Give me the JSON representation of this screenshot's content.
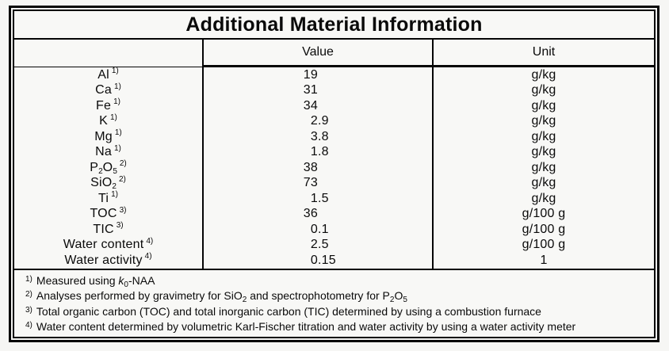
{
  "colors": {
    "background": "#f6f6f4",
    "paper": "#f8f8f6",
    "border": "#050505",
    "text": "#0a0a0a"
  },
  "table": {
    "title": "Additional Material Information",
    "columns": [
      "Value",
      "Unit"
    ],
    "rows": [
      {
        "param": [
          {
            "t": "Al"
          }
        ],
        "note": "1)",
        "value": "19",
        "unit": "g/kg"
      },
      {
        "param": [
          {
            "t": "Ca"
          }
        ],
        "note": "1)",
        "value": "31",
        "unit": "g/kg"
      },
      {
        "param": [
          {
            "t": "Fe"
          }
        ],
        "note": "1)",
        "value": "34",
        "unit": "g/kg"
      },
      {
        "param": [
          {
            "t": "K"
          }
        ],
        "note": "1)",
        "value": "2.9",
        "unit": "g/kg"
      },
      {
        "param": [
          {
            "t": "Mg"
          }
        ],
        "note": "1)",
        "value": "3.8",
        "unit": "g/kg"
      },
      {
        "param": [
          {
            "t": "Na"
          }
        ],
        "note": "1)",
        "value": "1.8",
        "unit": "g/kg"
      },
      {
        "param": [
          {
            "t": "P"
          },
          {
            "t": "2",
            "s": "sub"
          },
          {
            "t": "O"
          },
          {
            "t": "5",
            "s": "sub"
          }
        ],
        "note": "2)",
        "value": "38",
        "unit": "g/kg"
      },
      {
        "param": [
          {
            "t": "SiO"
          },
          {
            "t": "2",
            "s": "sub"
          }
        ],
        "note": "2)",
        "value": "73",
        "unit": "g/kg"
      },
      {
        "param": [
          {
            "t": "Ti"
          }
        ],
        "note": "1)",
        "value": "1.5",
        "unit": "g/kg"
      },
      {
        "param": [
          {
            "t": "TOC"
          }
        ],
        "note": "3)",
        "value": "36",
        "unit": "g/100 g"
      },
      {
        "param": [
          {
            "t": "TIC"
          }
        ],
        "note": "3)",
        "value": "0.1",
        "unit": "g/100 g"
      },
      {
        "param": [
          {
            "t": "Water content"
          }
        ],
        "note": "4)",
        "value": "2.5",
        "unit": "g/100 g"
      },
      {
        "param": [
          {
            "t": "Water activity"
          }
        ],
        "note": "4)",
        "value": "0.15",
        "unit": "1"
      }
    ],
    "footnotes": [
      {
        "marker": "1)",
        "text": [
          {
            "t": "Measured using "
          },
          {
            "t": "k",
            "s": "i"
          },
          {
            "t": "0",
            "s": "sub"
          },
          {
            "t": "-NAA"
          }
        ]
      },
      {
        "marker": "2)",
        "text": [
          {
            "t": "Analyses performed by gravimetry for SiO"
          },
          {
            "t": "2",
            "s": "sub"
          },
          {
            "t": " and spectrophotometry for P"
          },
          {
            "t": "2",
            "s": "sub"
          },
          {
            "t": "O"
          },
          {
            "t": "5",
            "s": "sub"
          }
        ]
      },
      {
        "marker": "3)",
        "text": [
          {
            "t": "Total organic carbon (TOC) and total inorganic carbon (TIC) determined by using a combustion furnace"
          }
        ]
      },
      {
        "marker": "4)",
        "text": [
          {
            "t": "Water content determined by volumetric Karl-Fischer titration and water activity by using a water activity meter"
          }
        ]
      }
    ]
  }
}
